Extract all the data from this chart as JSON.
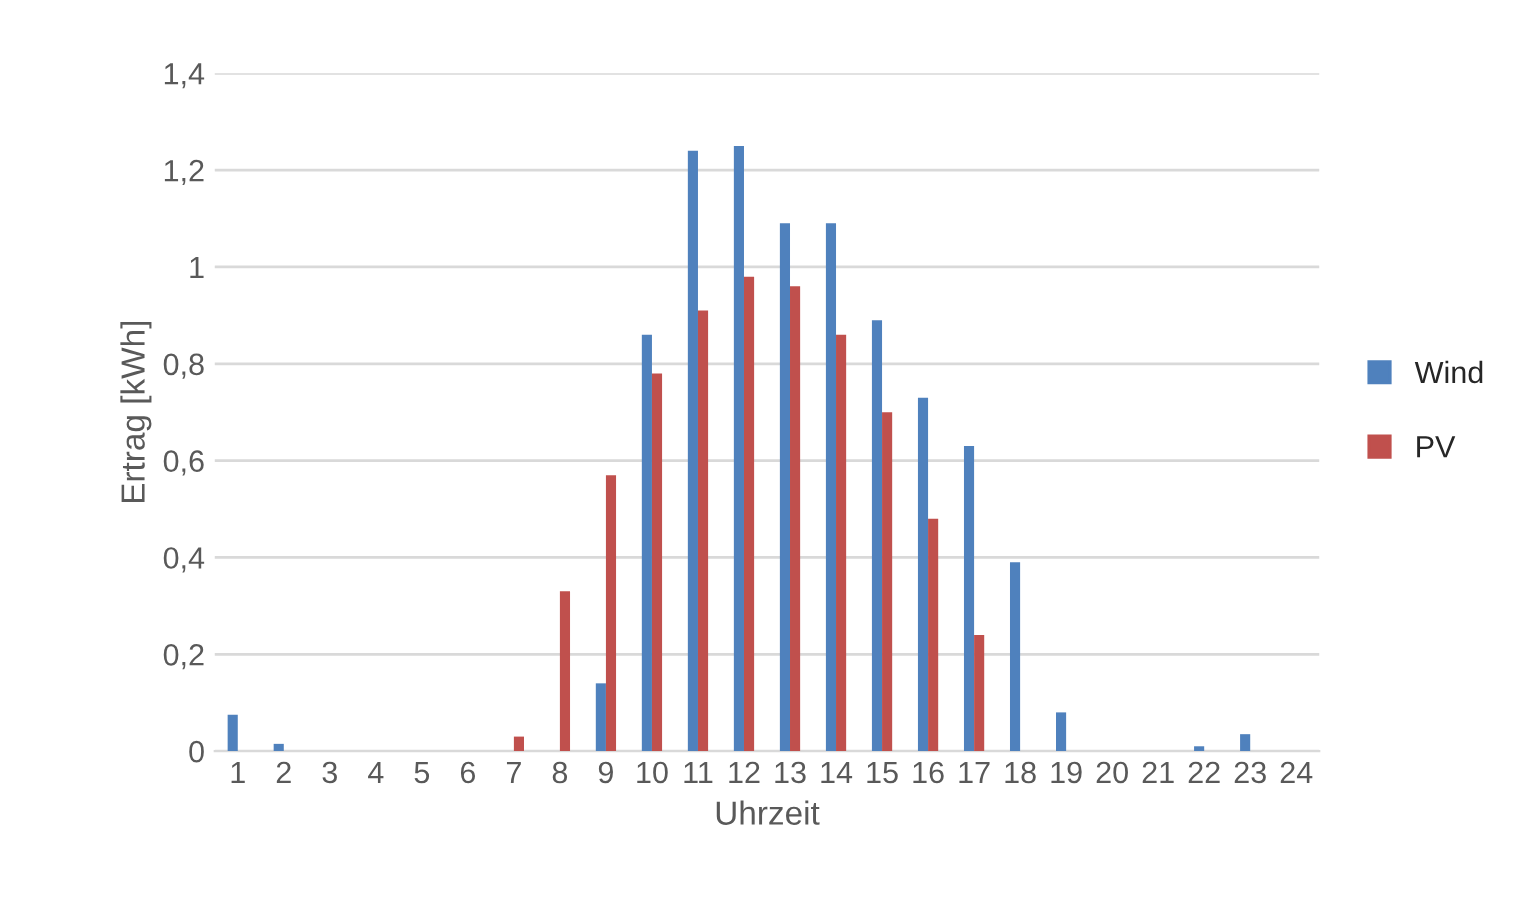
{
  "chart_data": {
    "type": "bar",
    "xlabel": "Uhrzeit",
    "ylabel": "Ertrag [kWh]",
    "categories": [
      "1",
      "2",
      "3",
      "4",
      "5",
      "6",
      "7",
      "8",
      "9",
      "10",
      "11",
      "12",
      "13",
      "14",
      "15",
      "16",
      "17",
      "18",
      "19",
      "20",
      "21",
      "22",
      "23",
      "24"
    ],
    "series": [
      {
        "name": "Wind",
        "color": "#4f81bd",
        "values": [
          0.075,
          0.015,
          0,
          0,
          0,
          0,
          0,
          0,
          0.14,
          0.86,
          1.24,
          1.25,
          1.09,
          1.09,
          0.89,
          0.73,
          0.63,
          0.39,
          0.08,
          0,
          0,
          0.01,
          0.035,
          0
        ]
      },
      {
        "name": "PV",
        "color": "#c0504d",
        "values": [
          0,
          0,
          0,
          0,
          0,
          0,
          0.03,
          0.33,
          0.57,
          0.78,
          0.91,
          0.98,
          0.96,
          0.86,
          0.7,
          0.48,
          0.24,
          0,
          0,
          0,
          0,
          0,
          0,
          0
        ]
      }
    ],
    "ylim": [
      0,
      1.4
    ],
    "yticks": [
      {
        "value": 0,
        "label": "0"
      },
      {
        "value": 0.2,
        "label": "0,2"
      },
      {
        "value": 0.4,
        "label": "0,4"
      },
      {
        "value": 0.6,
        "label": "0,6"
      },
      {
        "value": 0.8,
        "label": "0,8"
      },
      {
        "value": 1,
        "label": "1"
      },
      {
        "value": 1.2,
        "label": "1,2"
      },
      {
        "value": 1.4,
        "label": "1,4"
      }
    ],
    "grid": "y",
    "legend": "right"
  }
}
